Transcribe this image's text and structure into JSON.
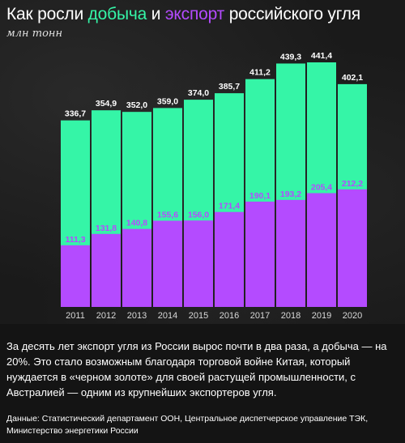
{
  "header": {
    "title_part1": "Как росли ",
    "title_green": "добыча",
    "title_part2": " и ",
    "title_purple": "экспорт",
    "title_part3": " российского угля",
    "subtitle": "млн тонн"
  },
  "colors": {
    "production": "#35f5a7",
    "export": "#b44bff",
    "background": "#141414"
  },
  "chart_data": {
    "type": "bar",
    "categories": [
      "2011",
      "2012",
      "2013",
      "2014",
      "2015",
      "2016",
      "2017",
      "2018",
      "2019",
      "2020"
    ],
    "series": [
      {
        "name": "добыча",
        "values": [
          336.7,
          354.9,
          352.0,
          359.0,
          374.0,
          385.7,
          411.2,
          439.3,
          441.4,
          402.1
        ],
        "labels": [
          "336,7",
          "354,9",
          "352,0",
          "359,0",
          "374,0",
          "385,7",
          "411,2",
          "439,3",
          "441,4",
          "402,1"
        ]
      },
      {
        "name": "экспорт",
        "values": [
          111.3,
          131.8,
          140.8,
          155.6,
          156.0,
          171.4,
          190.1,
          193.2,
          205.4,
          212.2
        ],
        "labels": [
          "111,3",
          "131,8",
          "140,8",
          "155,6",
          "156,0",
          "171,4",
          "190,1",
          "193,2",
          "205,4",
          "212,2"
        ]
      }
    ],
    "ylim": [
      0,
      450
    ],
    "grid": false,
    "overlapping": true
  },
  "description": "За десять лет экспорт угля из России вырос почти в два раза, а добыча — на 20%. Это стало возможным благодаря торговой войне Китая, который нуждается в «черном золоте» для своей растущей промышленности, с Австралией — одним из крупнейших экспортеров угля.",
  "source": "Данные: Статистический департамент ООН, Центральное диспетчерское управление ТЭК, Министерство энергетики России"
}
